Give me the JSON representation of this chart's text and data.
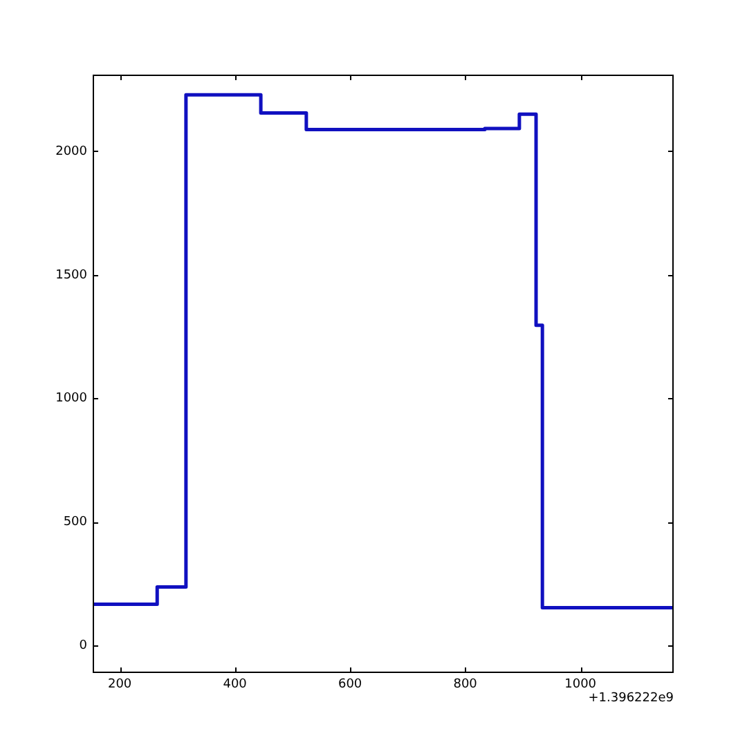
{
  "chart_data": {
    "type": "step",
    "x": [
      153,
      265,
      315,
      445,
      524,
      834,
      894,
      923,
      934,
      1162
    ],
    "series": [
      {
        "color": "#1010c0",
        "values": [
          168,
          238,
          2228,
          2155,
          2088,
          2092,
          2150,
          1296,
          154,
          154
        ]
      }
    ],
    "xlim": [
      153,
      1162
    ],
    "xticks": [
      200,
      400,
      600,
      800,
      1000
    ],
    "ylim": [
      -110,
      2310
    ],
    "yticks": [
      0,
      500,
      1000,
      1500,
      2000
    ],
    "annotations": [
      "+1.396222e9"
    ],
    "grid": false,
    "legend": false
  }
}
